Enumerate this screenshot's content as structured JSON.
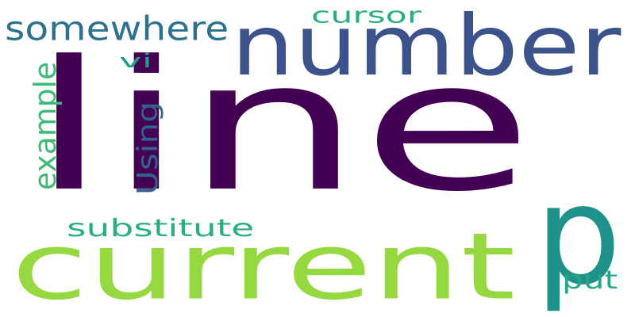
{
  "words": [
    {
      "text": "line",
      "color": "#440154",
      "vertical": false
    },
    {
      "text": "current",
      "color": "#95d840",
      "vertical": false
    },
    {
      "text": "number",
      "color": "#3b528b",
      "vertical": false
    },
    {
      "text": "p",
      "color": "#21918c",
      "vertical": false
    },
    {
      "text": "somewhere",
      "color": "#2c728e",
      "vertical": false
    },
    {
      "text": "Using",
      "color": "#33638d",
      "vertical": true
    },
    {
      "text": "example",
      "color": "#3cbb75",
      "vertical": true
    },
    {
      "text": "substitute",
      "color": "#29af7f",
      "vertical": false
    },
    {
      "text": "cursor",
      "color": "#28ae80",
      "vertical": false
    },
    {
      "text": "vi",
      "color": "#1f9e89",
      "vertical": false
    },
    {
      "text": "put",
      "color": "#22a884",
      "vertical": false
    }
  ]
}
